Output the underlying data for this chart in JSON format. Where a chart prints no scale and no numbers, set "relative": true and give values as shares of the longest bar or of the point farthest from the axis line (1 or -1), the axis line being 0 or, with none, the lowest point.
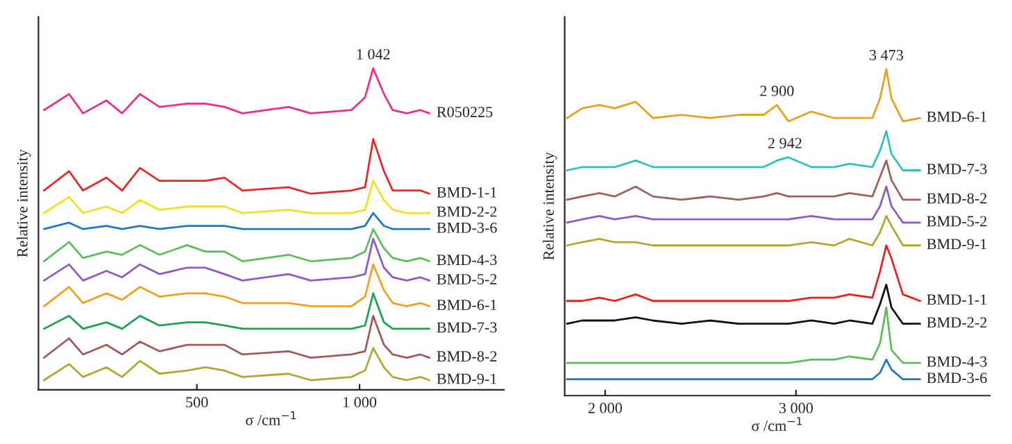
{
  "chart_data": [
    {
      "type": "line",
      "relative": true,
      "xlabel": "σ /cm$^{−1}$",
      "ylabel": "Relative intensity",
      "xlim": [
        13,
        1444
      ],
      "xticks": [
        {
          "value": 500,
          "label": "500"
        },
        {
          "value": 1000,
          "label": "1 000"
        }
      ],
      "x": [
        30,
        107,
        150,
        222,
        270,
        325,
        385,
        470,
        526,
        585,
        640,
        782,
        850,
        975,
        1017,
        1042,
        1075,
        1102,
        1145,
        1187,
        1215
      ],
      "annotations": [
        {
          "text": "1 042",
          "x": 1042,
          "y": 1.0
        }
      ],
      "series": [
        {
          "name": "R050225",
          "color": "#e8308a",
          "values": [
            0.87,
            0.92,
            0.86,
            0.9,
            0.86,
            0.92,
            0.88,
            0.89,
            0.89,
            0.88,
            0.86,
            0.88,
            0.86,
            0.87,
            0.91,
            1.0,
            0.92,
            0.87,
            0.86,
            0.87,
            0.86
          ]
        },
        {
          "name": "BMD-1-1",
          "color": "#e82828",
          "values": [
            0.62,
            0.68,
            0.62,
            0.66,
            0.62,
            0.69,
            0.65,
            0.65,
            0.65,
            0.66,
            0.62,
            0.63,
            0.61,
            0.62,
            0.63,
            0.78,
            0.68,
            0.62,
            0.62,
            0.62,
            0.61
          ]
        },
        {
          "name": "BMD-2-2",
          "color": "#f0e020",
          "values": [
            0.55,
            0.6,
            0.55,
            0.57,
            0.55,
            0.59,
            0.56,
            0.57,
            0.57,
            0.57,
            0.55,
            0.56,
            0.55,
            0.55,
            0.56,
            0.65,
            0.59,
            0.56,
            0.55,
            0.55,
            0.55
          ]
        },
        {
          "name": "BMD-3-6",
          "color": "#1f77c8",
          "values": [
            0.5,
            0.52,
            0.5,
            0.51,
            0.5,
            0.51,
            0.5,
            0.51,
            0.51,
            0.51,
            0.5,
            0.5,
            0.5,
            0.5,
            0.51,
            0.55,
            0.51,
            0.5,
            0.5,
            0.5,
            0.5
          ]
        },
        {
          "name": "BMD-4-3",
          "color": "#5cbd5c",
          "values": [
            0.4,
            0.46,
            0.41,
            0.43,
            0.42,
            0.45,
            0.42,
            0.45,
            0.43,
            0.43,
            0.4,
            0.42,
            0.4,
            0.41,
            0.43,
            0.5,
            0.44,
            0.41,
            0.4,
            0.41,
            0.4
          ]
        },
        {
          "name": "BMD-5-2",
          "color": "#8e5cc0",
          "values": [
            0.34,
            0.39,
            0.34,
            0.37,
            0.35,
            0.39,
            0.36,
            0.38,
            0.38,
            0.36,
            0.34,
            0.36,
            0.34,
            0.35,
            0.36,
            0.47,
            0.38,
            0.35,
            0.34,
            0.35,
            0.34
          ]
        },
        {
          "name": "BMD-6-1",
          "color": "#f0a020",
          "values": [
            0.26,
            0.32,
            0.27,
            0.3,
            0.28,
            0.32,
            0.29,
            0.3,
            0.3,
            0.29,
            0.27,
            0.27,
            0.26,
            0.26,
            0.29,
            0.39,
            0.31,
            0.27,
            0.26,
            0.27,
            0.26
          ]
        },
        {
          "name": "BMD-7-3",
          "color": "#20a050",
          "values": [
            0.19,
            0.23,
            0.19,
            0.21,
            0.19,
            0.23,
            0.2,
            0.21,
            0.21,
            0.2,
            0.19,
            0.19,
            0.19,
            0.19,
            0.2,
            0.3,
            0.21,
            0.19,
            0.19,
            0.19,
            0.19
          ]
        },
        {
          "name": "BMD-8-2",
          "color": "#a05a5a",
          "values": [
            0.1,
            0.16,
            0.11,
            0.14,
            0.11,
            0.15,
            0.12,
            0.14,
            0.14,
            0.14,
            0.11,
            0.12,
            0.1,
            0.11,
            0.12,
            0.23,
            0.14,
            0.11,
            0.1,
            0.11,
            0.1
          ]
        },
        {
          "name": "BMD-9-1",
          "color": "#b0a830",
          "values": [
            0.03,
            0.08,
            0.04,
            0.07,
            0.04,
            0.09,
            0.05,
            0.06,
            0.07,
            0.06,
            0.04,
            0.05,
            0.03,
            0.04,
            0.06,
            0.13,
            0.07,
            0.04,
            0.03,
            0.04,
            0.03
          ]
        }
      ]
    },
    {
      "type": "line",
      "relative": true,
      "xlabel": "σ /cm$^{−1}$",
      "ylabel": "Relative intensity",
      "xlim": [
        1788,
        4015
      ],
      "xticks": [
        {
          "value": 2000,
          "label": "2 000"
        },
        {
          "value": 3000,
          "label": "3 000"
        }
      ],
      "x": [
        1800,
        1880,
        1970,
        2050,
        2160,
        2250,
        2400,
        2550,
        2700,
        2830,
        2900,
        2960,
        3080,
        3200,
        3280,
        3400,
        3440,
        3473,
        3500,
        3560,
        3650
      ],
      "annotations": [
        {
          "text": "2 900",
          "x": 2900,
          "y": 0.89
        },
        {
          "text": "3 473",
          "x": 3473,
          "y": 1.0
        },
        {
          "text": "2 942",
          "x": 2942,
          "y": 0.73
        }
      ],
      "series": [
        {
          "name": "BMD-6-1",
          "color": "#e8a020",
          "values": [
            0.85,
            0.88,
            0.89,
            0.88,
            0.9,
            0.85,
            0.86,
            0.85,
            0.86,
            0.86,
            0.89,
            0.84,
            0.87,
            0.85,
            0.85,
            0.85,
            0.91,
            1.0,
            0.91,
            0.84,
            0.85
          ]
        },
        {
          "name": "BMD-7-3",
          "color": "#30c0c0",
          "values": [
            0.69,
            0.7,
            0.7,
            0.7,
            0.72,
            0.7,
            0.7,
            0.7,
            0.7,
            0.7,
            0.72,
            0.73,
            0.7,
            0.7,
            0.71,
            0.7,
            0.75,
            0.81,
            0.74,
            0.69,
            0.69
          ]
        },
        {
          "name": "BMD-8-2",
          "color": "#a0605a",
          "values": [
            0.6,
            0.61,
            0.62,
            0.61,
            0.64,
            0.61,
            0.6,
            0.61,
            0.6,
            0.61,
            0.62,
            0.61,
            0.61,
            0.61,
            0.62,
            0.61,
            0.67,
            0.72,
            0.66,
            0.6,
            0.6
          ]
        },
        {
          "name": "BMD-5-2",
          "color": "#8e5cc0",
          "values": [
            0.53,
            0.54,
            0.55,
            0.54,
            0.55,
            0.54,
            0.54,
            0.54,
            0.54,
            0.54,
            0.54,
            0.54,
            0.55,
            0.54,
            0.54,
            0.54,
            0.58,
            0.64,
            0.58,
            0.53,
            0.53
          ]
        },
        {
          "name": "BMD-9-1",
          "color": "#b0a830",
          "values": [
            0.46,
            0.47,
            0.48,
            0.47,
            0.47,
            0.46,
            0.46,
            0.46,
            0.46,
            0.46,
            0.46,
            0.46,
            0.47,
            0.46,
            0.48,
            0.46,
            0.5,
            0.55,
            0.52,
            0.46,
            0.46
          ]
        },
        {
          "name": "BMD-1-1",
          "color": "#e82020",
          "values": [
            0.29,
            0.29,
            0.3,
            0.29,
            0.31,
            0.29,
            0.29,
            0.29,
            0.29,
            0.29,
            0.29,
            0.29,
            0.3,
            0.3,
            0.31,
            0.3,
            0.38,
            0.46,
            0.42,
            0.31,
            0.29
          ]
        },
        {
          "name": "BMD-2-2",
          "color": "#101010",
          "values": [
            0.22,
            0.23,
            0.23,
            0.23,
            0.24,
            0.23,
            0.22,
            0.23,
            0.22,
            0.22,
            0.22,
            0.22,
            0.23,
            0.22,
            0.23,
            0.22,
            0.28,
            0.34,
            0.27,
            0.22,
            0.22
          ]
        },
        {
          "name": "BMD-4-3",
          "color": "#5cbd5c",
          "values": [
            0.1,
            0.1,
            0.1,
            0.1,
            0.1,
            0.1,
            0.1,
            0.1,
            0.1,
            0.1,
            0.1,
            0.1,
            0.11,
            0.11,
            0.12,
            0.11,
            0.16,
            0.27,
            0.14,
            0.1,
            0.1
          ]
        },
        {
          "name": "BMD-3-6",
          "color": "#1f77c8",
          "values": [
            0.05,
            0.05,
            0.05,
            0.05,
            0.05,
            0.05,
            0.05,
            0.05,
            0.05,
            0.05,
            0.05,
            0.05,
            0.05,
            0.05,
            0.05,
            0.05,
            0.07,
            0.11,
            0.08,
            0.05,
            0.05
          ]
        }
      ]
    }
  ]
}
